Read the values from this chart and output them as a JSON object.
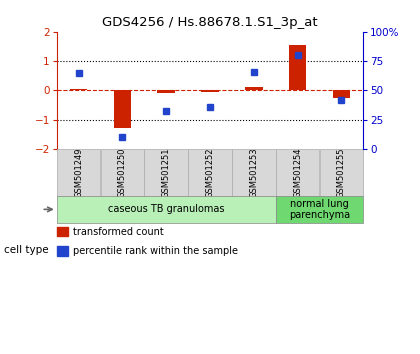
{
  "title": "GDS4256 / Hs.88678.1.S1_3p_at",
  "samples": [
    "GSM501249",
    "GSM501250",
    "GSM501251",
    "GSM501252",
    "GSM501253",
    "GSM501254",
    "GSM501255"
  ],
  "transformed_count": [
    0.05,
    -1.3,
    -0.1,
    -0.05,
    0.1,
    1.55,
    -0.25
  ],
  "percentile_rank_pct": [
    65,
    10,
    32,
    36,
    66,
    80,
    42
  ],
  "ylim": [
    -2,
    2
  ],
  "yticks_left": [
    -2,
    -1,
    0,
    1,
    2
  ],
  "yticks_right": [
    0,
    25,
    50,
    75,
    100
  ],
  "hline_dotted": [
    1,
    -1
  ],
  "hline_red_dashed": 0,
  "bar_color": "#cc2200",
  "dot_color": "#2244cc",
  "groups": [
    {
      "label": "caseous TB granulomas",
      "samples": [
        0,
        1,
        2,
        3,
        4
      ],
      "color": "#b8f0b8"
    },
    {
      "label": "normal lung\nparenchyma",
      "samples": [
        5,
        6
      ],
      "color": "#70d870"
    }
  ],
  "cell_type_label": "cell type",
  "legend_items": [
    {
      "color": "#cc2200",
      "label": "transformed count"
    },
    {
      "color": "#2244cc",
      "label": "percentile rank within the sample"
    }
  ],
  "background_color": "#ffffff",
  "sample_box_color": "#d8d8d8",
  "left_spine_color": "#cc2200",
  "right_spine_color": "#0000cc"
}
